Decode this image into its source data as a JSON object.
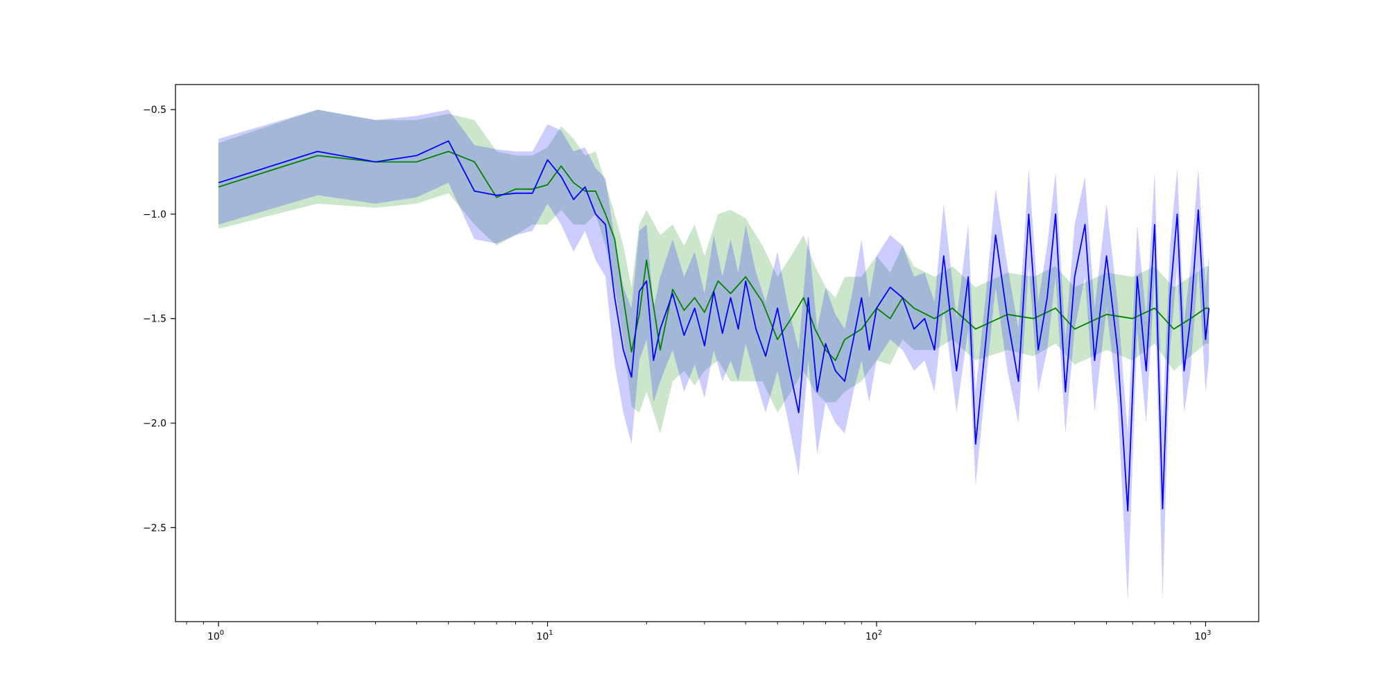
{
  "chart_data": {
    "type": "line",
    "title": "",
    "xlabel": "",
    "ylabel": "",
    "x_scale": "log",
    "xlim": [
      0.74,
      1450
    ],
    "ylim": [
      -2.95,
      -0.38
    ],
    "grid": false,
    "legend": "none",
    "x_ticks": [
      {
        "value": 1,
        "base": "10",
        "exp": "0"
      },
      {
        "value": 10,
        "base": "10",
        "exp": "1"
      },
      {
        "value": 100,
        "base": "10",
        "exp": "2"
      },
      {
        "value": 1000,
        "base": "10",
        "exp": "3"
      }
    ],
    "y_ticks": [
      {
        "value": -0.5,
        "label": "−0.5"
      },
      {
        "value": -1.0,
        "label": "−1.0"
      },
      {
        "value": -1.5,
        "label": "−1.5"
      },
      {
        "value": -2.0,
        "label": "−2.0"
      },
      {
        "value": -2.5,
        "label": "−2.5"
      }
    ],
    "series": [
      {
        "color": "#008000",
        "band_color": "#008000",
        "band_opacity": 0.2,
        "line_width": 1.8,
        "x": [
          1,
          2,
          3,
          4,
          5,
          6,
          7,
          8,
          9,
          10,
          11,
          12,
          13,
          14,
          15,
          16,
          17,
          18,
          19,
          20,
          22,
          24,
          26,
          28,
          30,
          33,
          36,
          40,
          45,
          50,
          55,
          60,
          65,
          70,
          75,
          80,
          90,
          100,
          110,
          120,
          130,
          150,
          170,
          200,
          250,
          300,
          350,
          400,
          500,
          600,
          700,
          800,
          900,
          1000,
          1024
        ],
        "y": [
          -0.87,
          -0.72,
          -0.75,
          -0.75,
          -0.7,
          -0.75,
          -0.92,
          -0.88,
          -0.88,
          -0.86,
          -0.77,
          -0.85,
          -0.89,
          -0.89,
          -1.0,
          -1.12,
          -1.4,
          -1.66,
          -1.48,
          -1.22,
          -1.65,
          -1.36,
          -1.46,
          -1.4,
          -1.47,
          -1.32,
          -1.38,
          -1.3,
          -1.42,
          -1.6,
          -1.5,
          -1.4,
          -1.55,
          -1.65,
          -1.7,
          -1.6,
          -1.55,
          -1.45,
          -1.5,
          -1.4,
          -1.45,
          -1.5,
          -1.45,
          -1.55,
          -1.48,
          -1.5,
          -1.45,
          -1.55,
          -1.48,
          -1.5,
          -1.45,
          -1.55,
          -1.5,
          -1.45,
          -1.45
        ],
        "y_low": [
          -1.07,
          -0.95,
          -0.97,
          -0.95,
          -0.9,
          -1.05,
          -1.15,
          -1.1,
          -1.05,
          -1.05,
          -0.98,
          -1.05,
          -1.05,
          -1.0,
          -1.15,
          -1.35,
          -1.6,
          -1.92,
          -1.95,
          -1.85,
          -2.05,
          -1.8,
          -1.75,
          -1.82,
          -1.75,
          -1.7,
          -1.8,
          -1.8,
          -1.8,
          -1.95,
          -1.85,
          -1.75,
          -1.85,
          -1.9,
          -1.9,
          -1.85,
          -1.8,
          -1.7,
          -1.72,
          -1.6,
          -1.65,
          -1.65,
          -1.6,
          -1.7,
          -1.65,
          -1.68,
          -1.62,
          -1.72,
          -1.65,
          -1.7,
          -1.62,
          -1.75,
          -1.68,
          -1.62,
          -1.62
        ],
        "y_high": [
          -0.66,
          -0.5,
          -0.55,
          -0.55,
          -0.52,
          -0.55,
          -0.7,
          -0.72,
          -0.72,
          -0.68,
          -0.58,
          -0.64,
          -0.72,
          -0.7,
          -0.85,
          -1.0,
          -1.15,
          -1.35,
          -1.05,
          -0.98,
          -1.1,
          -1.05,
          -1.15,
          -1.05,
          -1.2,
          -1.0,
          -0.98,
          -1.02,
          -1.15,
          -1.3,
          -1.2,
          -1.1,
          -1.25,
          -1.35,
          -1.4,
          -1.3,
          -1.3,
          -1.2,
          -1.28,
          -1.15,
          -1.25,
          -1.3,
          -1.25,
          -1.35,
          -1.28,
          -1.3,
          -1.25,
          -1.35,
          -1.28,
          -1.3,
          -1.25,
          -1.35,
          -1.3,
          -1.25,
          -1.25
        ]
      },
      {
        "color": "#0000ff",
        "band_color": "#0000ff",
        "band_opacity": 0.2,
        "line_width": 1.8,
        "x": [
          1,
          2,
          3,
          4,
          5,
          6,
          7,
          8,
          9,
          10,
          11,
          12,
          13,
          14,
          15,
          16,
          17,
          18,
          19,
          20,
          21,
          22,
          24,
          26,
          28,
          30,
          32,
          34,
          36,
          38,
          40,
          43,
          46,
          50,
          54,
          58,
          62,
          66,
          70,
          75,
          80,
          85,
          90,
          95,
          100,
          110,
          120,
          130,
          140,
          150,
          160,
          175,
          190,
          200,
          215,
          230,
          250,
          270,
          290,
          310,
          330,
          350,
          375,
          400,
          430,
          460,
          500,
          540,
          580,
          620,
          660,
          700,
          740,
          780,
          820,
          860,
          900,
          950,
          1000,
          1024
        ],
        "y": [
          -0.85,
          -0.7,
          -0.75,
          -0.72,
          -0.65,
          -0.89,
          -0.91,
          -0.9,
          -0.9,
          -0.74,
          -0.82,
          -0.93,
          -0.87,
          -1.0,
          -1.05,
          -1.4,
          -1.65,
          -1.78,
          -1.37,
          -1.32,
          -1.7,
          -1.55,
          -1.38,
          -1.58,
          -1.45,
          -1.63,
          -1.37,
          -1.57,
          -1.4,
          -1.55,
          -1.32,
          -1.55,
          -1.68,
          -1.45,
          -1.72,
          -1.95,
          -1.4,
          -1.85,
          -1.62,
          -1.75,
          -1.8,
          -1.6,
          -1.4,
          -1.65,
          -1.45,
          -1.35,
          -1.4,
          -1.55,
          -1.5,
          -1.65,
          -1.2,
          -1.75,
          -1.3,
          -2.1,
          -1.6,
          -1.1,
          -1.5,
          -1.8,
          -1.0,
          -1.65,
          -1.4,
          -1.0,
          -1.85,
          -1.3,
          -1.05,
          -1.7,
          -1.2,
          -1.65,
          -2.42,
          -1.3,
          -1.75,
          -1.05,
          -2.41,
          -1.4,
          -1.0,
          -1.75,
          -1.5,
          -0.98,
          -1.6,
          -1.45
        ],
        "y_low": [
          -1.05,
          -0.91,
          -0.95,
          -0.92,
          -0.85,
          -1.12,
          -1.14,
          -1.1,
          -1.08,
          -0.95,
          -1.05,
          -1.18,
          -1.08,
          -1.22,
          -1.3,
          -1.72,
          -1.95,
          -2.1,
          -1.7,
          -1.6,
          -1.9,
          -1.8,
          -1.65,
          -1.85,
          -1.72,
          -1.88,
          -1.65,
          -1.8,
          -1.7,
          -1.8,
          -1.62,
          -1.8,
          -1.95,
          -1.75,
          -2.0,
          -2.25,
          -1.7,
          -2.15,
          -1.9,
          -2.0,
          -2.05,
          -1.85,
          -1.7,
          -1.9,
          -1.7,
          -1.6,
          -1.65,
          -1.75,
          -1.7,
          -1.85,
          -1.45,
          -1.95,
          -1.55,
          -2.3,
          -1.8,
          -1.35,
          -1.75,
          -2.0,
          -1.25,
          -1.85,
          -1.65,
          -1.3,
          -2.05,
          -1.55,
          -1.3,
          -1.95,
          -1.45,
          -1.9,
          -2.85,
          -1.55,
          -2.0,
          -1.3,
          -2.85,
          -1.65,
          -1.25,
          -1.95,
          -1.75,
          -1.25,
          -1.85,
          -1.7
        ],
        "y_high": [
          -0.64,
          -0.5,
          -0.55,
          -0.53,
          -0.5,
          -0.67,
          -0.69,
          -0.7,
          -0.7,
          -0.57,
          -0.6,
          -0.7,
          -0.68,
          -0.78,
          -0.83,
          -1.12,
          -1.35,
          -1.45,
          -1.08,
          -1.05,
          -1.45,
          -1.3,
          -1.12,
          -1.3,
          -1.18,
          -1.38,
          -1.1,
          -1.3,
          -1.12,
          -1.28,
          -1.05,
          -1.28,
          -1.42,
          -1.18,
          -1.45,
          -1.65,
          -1.1,
          -1.55,
          -1.35,
          -1.48,
          -1.55,
          -1.35,
          -1.12,
          -1.4,
          -1.2,
          -1.1,
          -1.15,
          -1.3,
          -1.28,
          -1.42,
          -0.95,
          -1.5,
          -1.05,
          -1.85,
          -1.38,
          -0.88,
          -1.25,
          -1.55,
          -0.78,
          -1.42,
          -1.15,
          -0.8,
          -1.6,
          -1.05,
          -0.82,
          -1.45,
          -0.95,
          -1.42,
          -2.05,
          -1.05,
          -1.5,
          -0.8,
          -2.0,
          -1.15,
          -0.78,
          -1.52,
          -1.25,
          -0.78,
          -1.35,
          -1.2
        ]
      }
    ]
  }
}
